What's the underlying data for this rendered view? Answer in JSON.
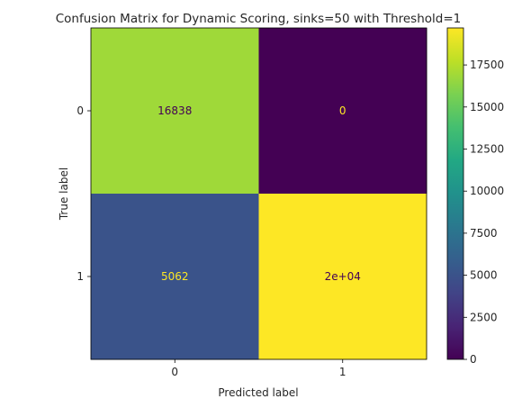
{
  "chart_data": {
    "type": "heatmap",
    "title": "Confusion Matrix for Dynamic Scoring, sinks=50 with Threshold=1",
    "xlabel": "Predicted label",
    "ylabel": "True label",
    "x_categories": [
      "0",
      "1"
    ],
    "y_categories": [
      "0",
      "1"
    ],
    "values": [
      [
        16838,
        0
      ],
      [
        5062,
        19700
      ]
    ],
    "cell_labels": [
      [
        "16838",
        "0"
      ],
      [
        "5062",
        "2e+04"
      ]
    ],
    "colormap": "viridis",
    "colorbar": {
      "range": [
        0,
        19700
      ],
      "ticks": [
        0,
        2500,
        5000,
        7500,
        10000,
        12500,
        15000,
        17500
      ],
      "tick_labels": [
        "0",
        "2500",
        "5000",
        "7500",
        "10000",
        "12500",
        "15000",
        "17500"
      ]
    },
    "grid": false
  }
}
